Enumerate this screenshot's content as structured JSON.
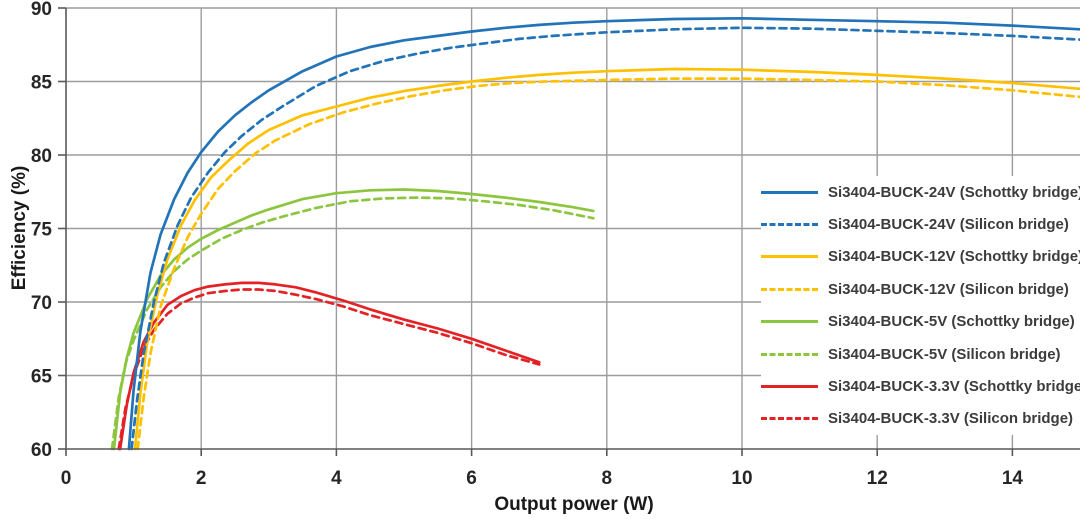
{
  "chart_data": {
    "type": "line",
    "title": "",
    "xlabel": "Output power (W)",
    "ylabel": "Efficiency (%)",
    "xlim": [
      0,
      15
    ],
    "ylim": [
      60,
      90
    ],
    "x_ticks": [
      0,
      2,
      4,
      6,
      8,
      10,
      12,
      14
    ],
    "y_ticks": [
      60,
      65,
      70,
      75,
      80,
      85,
      90
    ],
    "grid": true,
    "legend_position": "middle-right",
    "colors": {
      "grid": "#9c9c9c",
      "axis": "#595959",
      "tick_text": "#262626",
      "blue": "#2273b8",
      "yellow": "#ffc000",
      "green": "#8cc63f",
      "red": "#e32226"
    },
    "series": [
      {
        "key": "si3404-buck-24v-schottky",
        "label": "Si3404-BUCK-24V (Schottky bridge)",
        "color": "#2273b8",
        "dash": false,
        "x": [
          0.93,
          1.0,
          1.1,
          1.25,
          1.4,
          1.6,
          1.8,
          2.0,
          2.25,
          2.5,
          2.75,
          3.0,
          3.5,
          4.0,
          4.5,
          5.0,
          5.5,
          6.0,
          6.5,
          7.0,
          7.5,
          8.0,
          9.0,
          10.0,
          11.0,
          12.0,
          13.0,
          14.0,
          15.0
        ],
        "y": [
          60.0,
          64.0,
          68.0,
          72.0,
          74.6,
          77.0,
          78.8,
          80.2,
          81.6,
          82.7,
          83.6,
          84.4,
          85.7,
          86.7,
          87.35,
          87.8,
          88.1,
          88.4,
          88.65,
          88.85,
          89.0,
          89.1,
          89.25,
          89.3,
          89.2,
          89.1,
          89.0,
          88.8,
          88.55
        ]
      },
      {
        "key": "si3404-buck-24v-silicon",
        "label": "Si3404-BUCK-24V (Silicon bridge)",
        "color": "#2273b8",
        "dash": true,
        "x": [
          0.97,
          1.05,
          1.15,
          1.3,
          1.45,
          1.65,
          1.85,
          2.1,
          2.35,
          2.6,
          2.9,
          3.2,
          3.7,
          4.2,
          4.7,
          5.2,
          5.7,
          6.2,
          6.7,
          7.2,
          8.0,
          9.0,
          10.0,
          11.0,
          12.0,
          13.0,
          14.0,
          15.0
        ],
        "y": [
          60.0,
          63.3,
          66.5,
          70.0,
          72.7,
          75.2,
          77.1,
          78.8,
          80.2,
          81.3,
          82.4,
          83.3,
          84.7,
          85.7,
          86.4,
          86.9,
          87.3,
          87.6,
          87.9,
          88.1,
          88.35,
          88.55,
          88.65,
          88.6,
          88.45,
          88.3,
          88.1,
          87.85
        ]
      },
      {
        "key": "si3404-buck-12v-schottky",
        "label": "Si3404-BUCK-12V (Schottky bridge)",
        "color": "#ffc000",
        "dash": false,
        "x": [
          1.02,
          1.1,
          1.2,
          1.35,
          1.5,
          1.7,
          1.9,
          2.15,
          2.4,
          2.7,
          3.0,
          3.5,
          4.0,
          4.5,
          5.0,
          5.5,
          6.0,
          6.5,
          7.0,
          7.5,
          8.0,
          9.0,
          10.0,
          11.0,
          12.0,
          13.0,
          14.0,
          15.0
        ],
        "y": [
          60.0,
          63.8,
          67.2,
          70.5,
          72.9,
          75.2,
          76.9,
          78.5,
          79.6,
          80.8,
          81.7,
          82.7,
          83.3,
          83.9,
          84.35,
          84.7,
          85.0,
          85.25,
          85.45,
          85.6,
          85.7,
          85.85,
          85.8,
          85.65,
          85.45,
          85.2,
          84.9,
          84.5
        ]
      },
      {
        "key": "si3404-buck-12v-silicon",
        "label": "Si3404-BUCK-12V (Silicon bridge)",
        "color": "#ffc000",
        "dash": true,
        "x": [
          1.06,
          1.15,
          1.25,
          1.4,
          1.6,
          1.8,
          2.0,
          2.25,
          2.5,
          2.8,
          3.1,
          3.6,
          4.1,
          4.6,
          5.1,
          5.6,
          6.1,
          6.6,
          7.1,
          8.0,
          9.0,
          10.0,
          11.0,
          12.0,
          13.0,
          14.0,
          15.0
        ],
        "y": [
          60.0,
          63.5,
          66.5,
          69.7,
          72.3,
          74.4,
          76.0,
          77.7,
          78.9,
          80.1,
          81.0,
          82.1,
          82.9,
          83.5,
          84.0,
          84.4,
          84.7,
          84.9,
          85.0,
          85.1,
          85.2,
          85.2,
          85.1,
          85.0,
          84.75,
          84.4,
          83.95
        ]
      },
      {
        "key": "si3404-buck-5v-schottky",
        "label": "Si3404-BUCK-5V (Schottky bridge)",
        "color": "#8cc63f",
        "dash": false,
        "x": [
          0.71,
          0.8,
          0.9,
          1.0,
          1.2,
          1.4,
          1.6,
          1.8,
          2.0,
          2.25,
          2.5,
          2.75,
          3.0,
          3.5,
          4.0,
          4.5,
          5.0,
          5.5,
          6.0,
          6.5,
          7.0,
          7.5,
          7.8
        ],
        "y": [
          60.0,
          63.8,
          66.2,
          67.9,
          70.2,
          71.8,
          72.9,
          73.7,
          74.3,
          74.9,
          75.4,
          75.9,
          76.3,
          77.0,
          77.4,
          77.6,
          77.65,
          77.55,
          77.35,
          77.1,
          76.8,
          76.45,
          76.2
        ]
      },
      {
        "key": "si3404-buck-5v-silicon",
        "label": "Si3404-BUCK-5V (Silicon bridge)",
        "color": "#8cc63f",
        "dash": true,
        "x": [
          0.68,
          0.78,
          0.88,
          1.0,
          1.2,
          1.4,
          1.6,
          1.8,
          2.0,
          2.3,
          2.6,
          2.9,
          3.2,
          3.7,
          4.2,
          4.7,
          5.2,
          5.7,
          6.2,
          6.7,
          7.2,
          7.8
        ],
        "y": [
          60.0,
          63.5,
          65.8,
          67.4,
          69.5,
          71.0,
          72.1,
          72.9,
          73.5,
          74.3,
          74.9,
          75.4,
          75.8,
          76.4,
          76.85,
          77.05,
          77.1,
          77.05,
          76.85,
          76.6,
          76.25,
          75.7
        ]
      },
      {
        "key": "si3404-buck-3.3v-schottky",
        "label": "Si3404-BUCK-3.3V (Schottky bridge)",
        "color": "#e32226",
        "dash": false,
        "x": [
          0.8,
          0.9,
          1.0,
          1.15,
          1.3,
          1.5,
          1.7,
          1.9,
          2.1,
          2.35,
          2.6,
          2.85,
          3.1,
          3.4,
          3.7,
          4.1,
          4.5,
          5.0,
          5.5,
          6.0,
          6.5,
          7.0
        ],
        "y": [
          60.0,
          63.0,
          65.2,
          67.3,
          68.6,
          69.8,
          70.4,
          70.8,
          71.05,
          71.2,
          71.3,
          71.3,
          71.2,
          71.0,
          70.65,
          70.1,
          69.5,
          68.8,
          68.2,
          67.5,
          66.7,
          65.9
        ]
      },
      {
        "key": "si3404-buck-3.3v-silicon",
        "label": "Si3404-BUCK-3.3V (Silicon bridge)",
        "color": "#e32226",
        "dash": true,
        "x": [
          0.78,
          0.88,
          1.0,
          1.15,
          1.3,
          1.5,
          1.7,
          1.9,
          2.1,
          2.35,
          2.6,
          2.85,
          3.1,
          3.4,
          3.7,
          4.1,
          4.5,
          5.0,
          5.5,
          6.0,
          6.5,
          7.0
        ],
        "y": [
          60.0,
          62.8,
          65.0,
          66.9,
          68.1,
          69.2,
          69.9,
          70.3,
          70.6,
          70.75,
          70.85,
          70.85,
          70.75,
          70.5,
          70.2,
          69.7,
          69.1,
          68.5,
          67.9,
          67.2,
          66.4,
          65.75
        ]
      }
    ]
  }
}
